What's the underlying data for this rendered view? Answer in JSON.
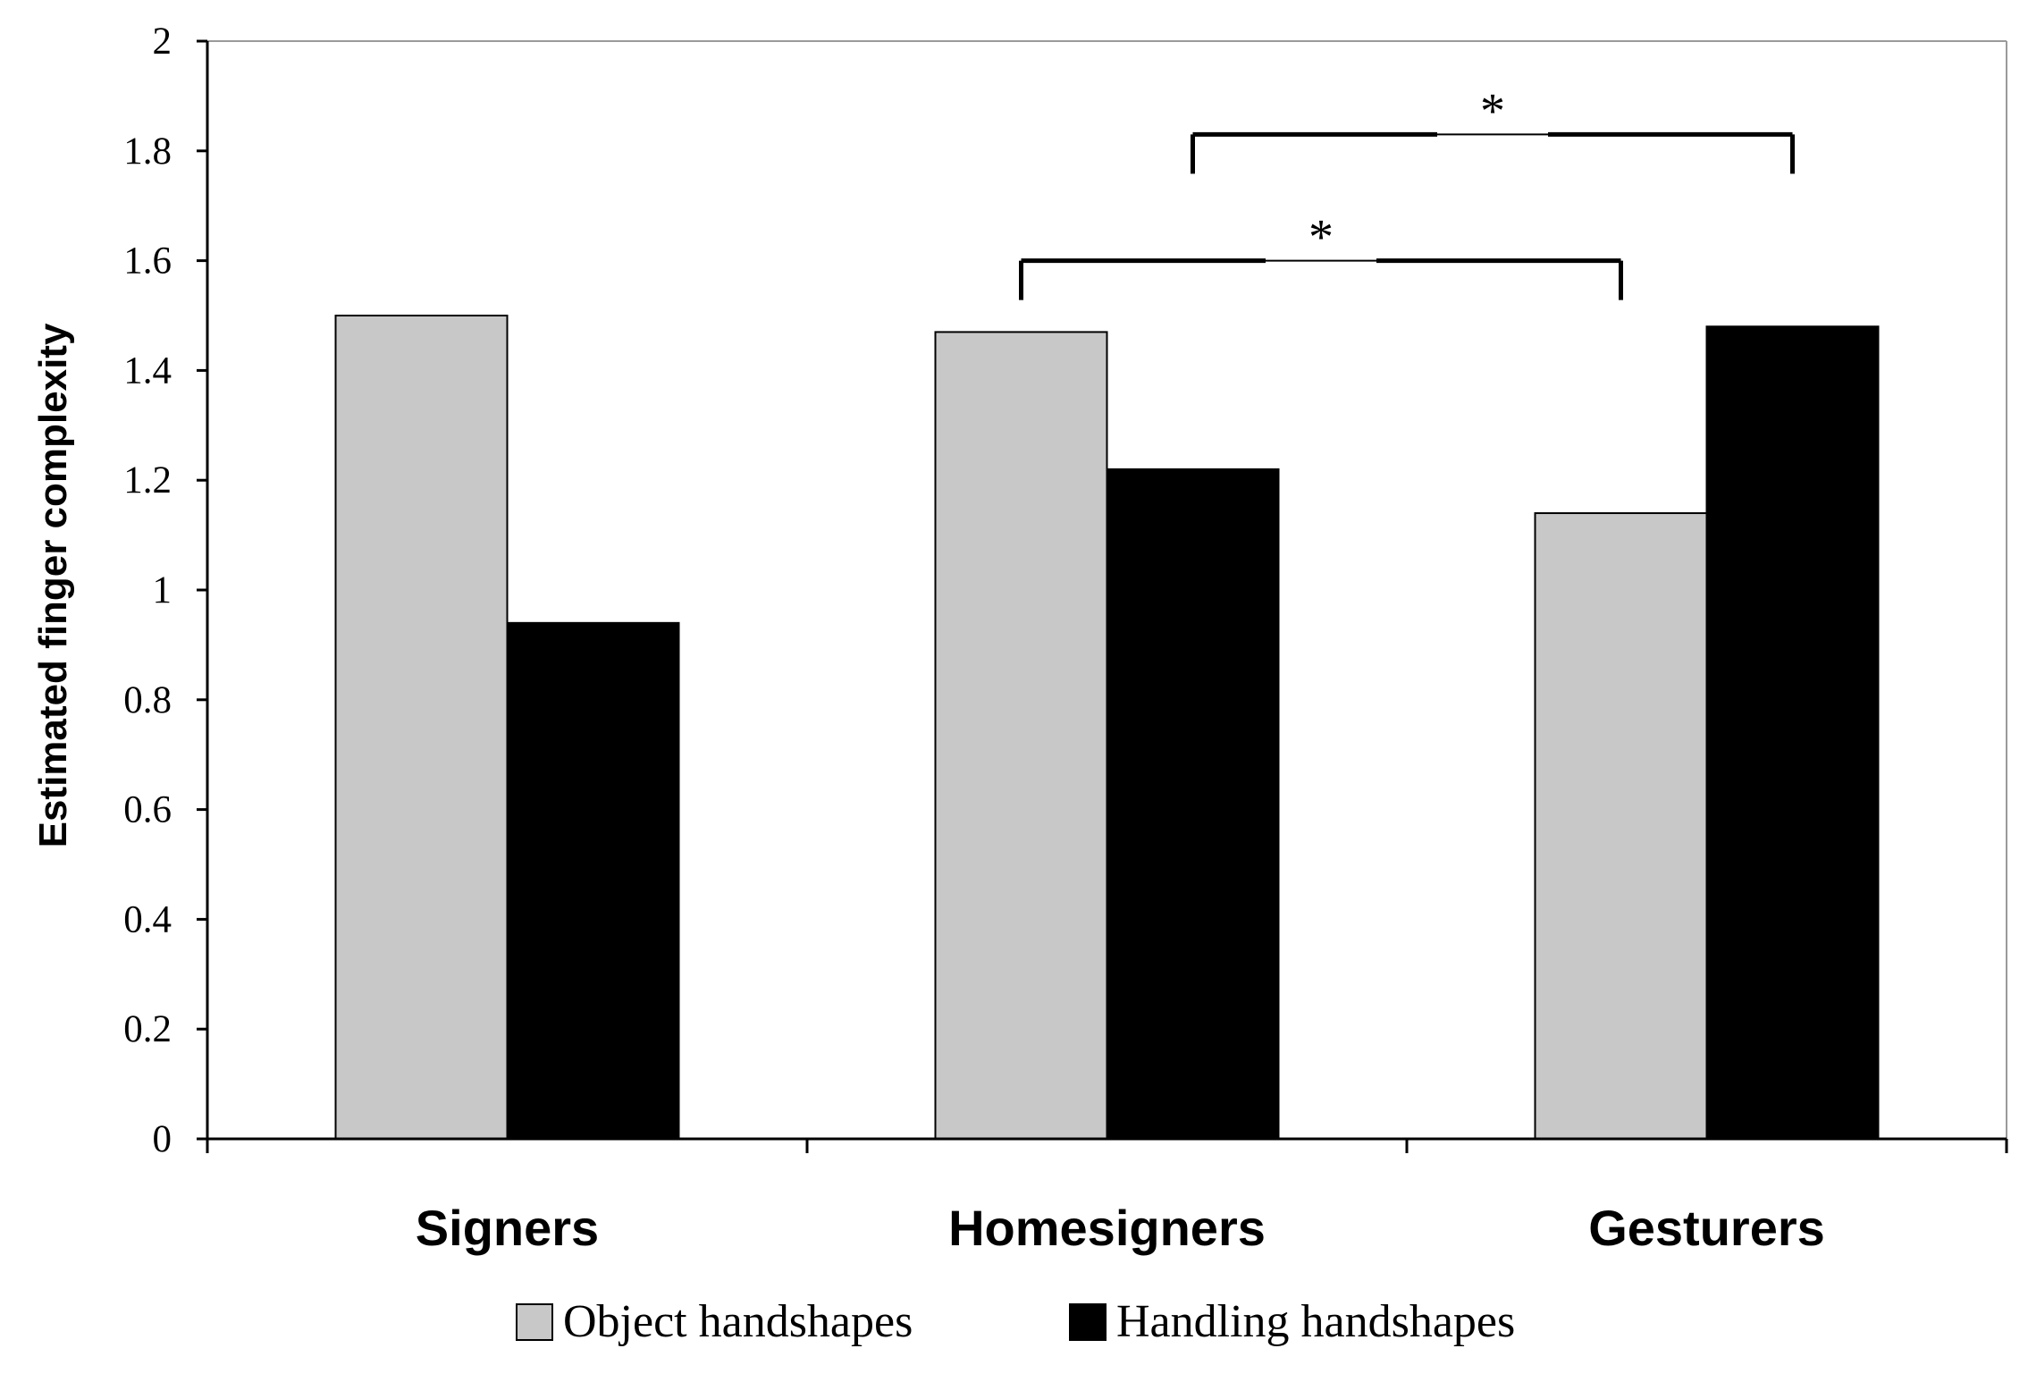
{
  "chart_data": {
    "type": "bar",
    "title": "",
    "xlabel": "",
    "ylabel": "Estimated finger complexity",
    "ylim": [
      0,
      2
    ],
    "yticks": [
      "0",
      "0.2",
      "0.4",
      "0.6",
      "0.8",
      "1",
      "1.2",
      "1.4",
      "1.6",
      "1.8",
      "2"
    ],
    "categories": [
      "Signers",
      "Homesigners",
      "Gesturers"
    ],
    "series": [
      {
        "name": "Object handshapes",
        "color": "#c8c8c8",
        "values": [
          1.5,
          1.47,
          1.14
        ]
      },
      {
        "name": "Handling handshapes",
        "color": "#000000",
        "values": [
          0.94,
          1.22,
          1.48
        ]
      }
    ],
    "grid": false,
    "legend": "bottom-center",
    "annotations": [
      {
        "label": "*",
        "from_category": "Homesigners",
        "from_series": "Object handshapes",
        "to_category": "Gesturers",
        "to_series": "Object handshapes",
        "level": 1.6
      },
      {
        "label": "*",
        "from_category": "Homesigners",
        "from_series": "Handling handshapes",
        "to_category": "Gesturers",
        "to_series": "Handling handshapes",
        "level": 1.83
      }
    ]
  }
}
